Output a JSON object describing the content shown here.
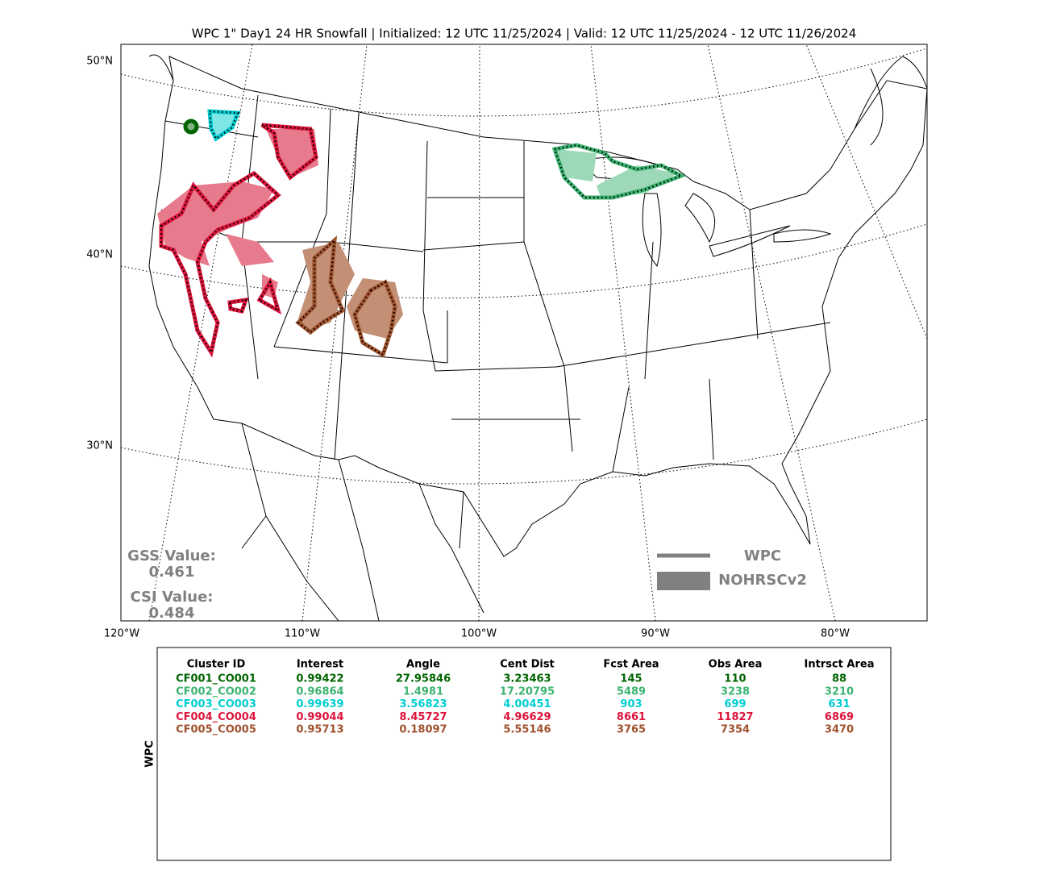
{
  "title": "WPC 1\" Day1 24 HR Snowfall | Initialized: 12 UTC 11/25/2024 | Valid: 12 UTC 11/25/2024 - 12 UTC 11/26/2024",
  "map": {
    "lat_labels": [
      "50°N",
      "40°N",
      "30°N"
    ],
    "lon_labels": [
      "120°W",
      "110°W",
      "100°W",
      "90°W",
      "80°W"
    ]
  },
  "legend": {
    "items": [
      "WPC",
      "NOHRSCv2"
    ]
  },
  "scores": {
    "gss_label": "GSS Value:",
    "gss_value": "0.461",
    "csi_label": "CSI Value:",
    "csi_value": "0.484"
  },
  "table": {
    "side_label": "WPC",
    "header": [
      "Cluster ID",
      "Interest",
      "Angle",
      "Cent Dist",
      "Fcst Area",
      "Obs Area",
      "Intrsct Area"
    ],
    "row_colors": [
      "#006400",
      "#3cb371",
      "#00ced1",
      "#dc143c",
      "#a0522d"
    ],
    "rows": [
      [
        "CF001_CO001",
        "0.99422",
        "27.95846",
        "3.23463",
        "145",
        "110",
        "88"
      ],
      [
        "CF002_CO002",
        "0.96864",
        "1.4981",
        "17.20795",
        "5489",
        "3238",
        "3210"
      ],
      [
        "CF003_CO003",
        "0.99639",
        "3.56823",
        "4.00451",
        "903",
        "699",
        "631"
      ],
      [
        "CF004_CO004",
        "0.99044",
        "8.45727",
        "4.96629",
        "8661",
        "11827",
        "6869"
      ],
      [
        "CF005_CO005",
        "0.95713",
        "0.18097",
        "5.55146",
        "3765",
        "7354",
        "3470"
      ]
    ]
  }
}
